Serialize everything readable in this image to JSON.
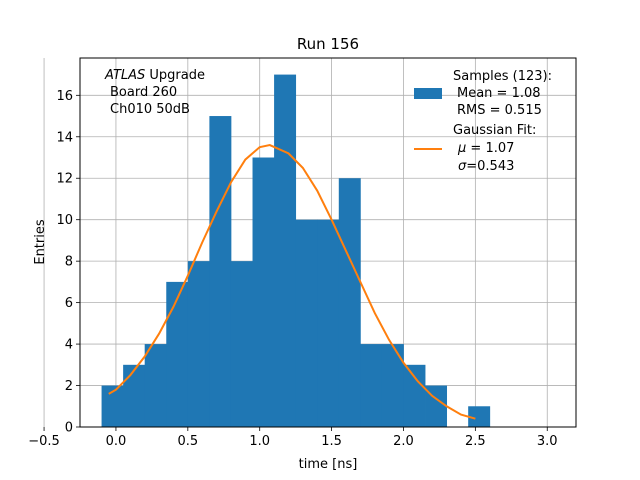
{
  "chart_data": {
    "type": "bar",
    "title": "Run 156",
    "xlabel": "time [ns]",
    "ylabel": "Entries",
    "xlim": [
      -0.25,
      3.2
    ],
    "ylim": [
      0,
      17.8
    ],
    "grid": true,
    "legend_position": "top-right",
    "colors": {
      "bars": "#1f77b4",
      "fit": "#ff7f0e"
    },
    "x_ticks": [
      {
        "value": -0.5,
        "label": "−0.5"
      },
      {
        "value": 0.0,
        "label": "0.0"
      },
      {
        "value": 0.5,
        "label": "0.5"
      },
      {
        "value": 1.0,
        "label": "1.0"
      },
      {
        "value": 1.5,
        "label": "1.5"
      },
      {
        "value": 2.0,
        "label": "2.0"
      },
      {
        "value": 2.5,
        "label": "2.5"
      },
      {
        "value": 3.0,
        "label": "3.0"
      }
    ],
    "y_ticks": [
      {
        "value": 0,
        "label": "0"
      },
      {
        "value": 2,
        "label": "2"
      },
      {
        "value": 4,
        "label": "4"
      },
      {
        "value": 6,
        "label": "6"
      },
      {
        "value": 8,
        "label": "8"
      },
      {
        "value": 10,
        "label": "10"
      },
      {
        "value": 12,
        "label": "12"
      },
      {
        "value": 14,
        "label": "14"
      },
      {
        "value": 16,
        "label": "16"
      }
    ],
    "histogram": {
      "bin_edges": [
        -0.1,
        0.05,
        0.2,
        0.35,
        0.5,
        0.65,
        0.8,
        0.95,
        1.1,
        1.25,
        1.4,
        1.55,
        1.7,
        1.85,
        2.0,
        2.15,
        2.3,
        2.45,
        2.6
      ],
      "counts": [
        2,
        3,
        4,
        7,
        8,
        15,
        8,
        13,
        17,
        10,
        10,
        12,
        4,
        4,
        3,
        2,
        0,
        1
      ]
    },
    "fit": {
      "x": [
        -0.05,
        0.0,
        0.1,
        0.2,
        0.3,
        0.4,
        0.5,
        0.6,
        0.7,
        0.8,
        0.9,
        1.0,
        1.07,
        1.2,
        1.3,
        1.4,
        1.5,
        1.6,
        1.7,
        1.8,
        1.9,
        2.0,
        2.1,
        2.2,
        2.3,
        2.4,
        2.5
      ],
      "y": [
        1.6,
        1.8,
        2.5,
        3.4,
        4.5,
        5.8,
        7.3,
        8.9,
        10.4,
        11.8,
        12.9,
        13.5,
        13.6,
        13.2,
        12.5,
        11.4,
        10.0,
        8.5,
        7.0,
        5.5,
        4.2,
        3.1,
        2.2,
        1.5,
        1.0,
        0.6,
        0.4
      ]
    },
    "annotation": {
      "line1_italic": "ATLAS",
      "line1_rest": " Upgrade",
      "line2": "Board 260",
      "line3": "Ch010 50dB"
    },
    "legend": {
      "samples": {
        "line1": "Samples (123):",
        "line2": "Mean = 1.08",
        "line3": "RMS = 0.515"
      },
      "fit": {
        "line1": "Gaussian Fit:",
        "mu_symbol": "μ",
        "mu_text": " = 1.07",
        "sigma_symbol": "σ",
        "sigma_text": "=0.543"
      }
    }
  }
}
